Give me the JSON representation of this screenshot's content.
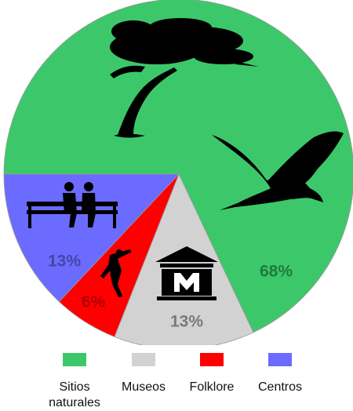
{
  "chart_data": {
    "type": "pie",
    "categories": [
      "Sitios naturales",
      "Museos",
      "Folklore",
      "Centros"
    ],
    "values": [
      68,
      13,
      6,
      13
    ],
    "value_labels": [
      "68%",
      "13%",
      "6%",
      "13%"
    ],
    "colors": [
      "#3cc86a",
      "#d2d2d2",
      "#ff0000",
      "#6b6bff"
    ],
    "legend": "bottom"
  }
}
